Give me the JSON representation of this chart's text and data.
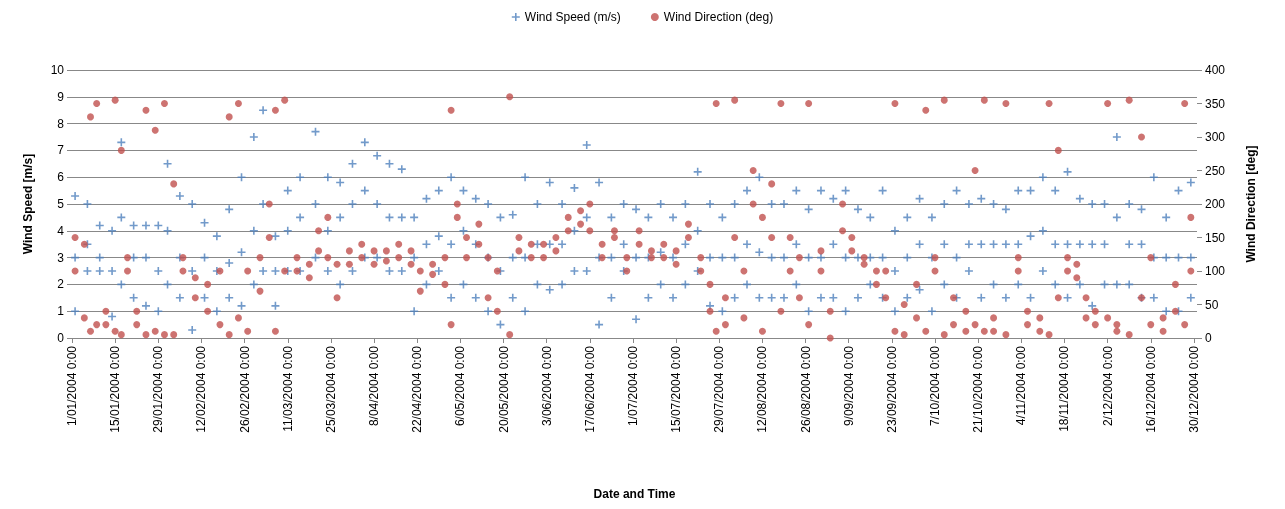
{
  "chart_data": {
    "type": "scatter",
    "xlabel": "Date and Time",
    "ylabel": "Wind Speed [m/s]",
    "y2label": "Wind Direction [deg]",
    "xlim": [
      "2004-01-01",
      "2004-12-31"
    ],
    "xticks": [
      {
        "value": "2004-01-01",
        "label": "1/01/2004 0:00"
      },
      {
        "value": "2004-01-15",
        "label": "15/01/2004 0:00"
      },
      {
        "value": "2004-01-29",
        "label": "29/01/2004 0:00"
      },
      {
        "value": "2004-02-12",
        "label": "12/02/2004 0:00"
      },
      {
        "value": "2004-02-26",
        "label": "26/02/2004 0:00"
      },
      {
        "value": "2004-03-11",
        "label": "11/03/2004 0:00"
      },
      {
        "value": "2004-03-25",
        "label": "25/03/2004 0:00"
      },
      {
        "value": "2004-04-08",
        "label": "8/04/2004 0:00"
      },
      {
        "value": "2004-04-22",
        "label": "22/04/2004 0:00"
      },
      {
        "value": "2004-05-06",
        "label": "6/05/2004 0:00"
      },
      {
        "value": "2004-05-20",
        "label": "20/05/2004 0:00"
      },
      {
        "value": "2004-06-03",
        "label": "3/06/2004 0:00"
      },
      {
        "value": "2004-06-17",
        "label": "17/06/2004 0:00"
      },
      {
        "value": "2004-07-01",
        "label": "1/07/2004 0:00"
      },
      {
        "value": "2004-07-15",
        "label": "15/07/2004 0:00"
      },
      {
        "value": "2004-07-29",
        "label": "29/07/2004 0:00"
      },
      {
        "value": "2004-08-12",
        "label": "12/08/2004 0:00"
      },
      {
        "value": "2004-08-26",
        "label": "26/08/2004 0:00"
      },
      {
        "value": "2004-09-09",
        "label": "9/09/2004 0:00"
      },
      {
        "value": "2004-09-23",
        "label": "23/09/2004 0:00"
      },
      {
        "value": "2004-10-07",
        "label": "7/10/2004 0:00"
      },
      {
        "value": "2004-10-21",
        "label": "21/10/2004 0:00"
      },
      {
        "value": "2004-11-04",
        "label": "4/11/2004 0:00"
      },
      {
        "value": "2004-11-18",
        "label": "18/11/2004 0:00"
      },
      {
        "value": "2004-12-02",
        "label": "2/12/2004 0:00"
      },
      {
        "value": "2004-12-16",
        "label": "16/12/2004 0:00"
      },
      {
        "value": "2004-12-30",
        "label": "30/12/2004 0:00"
      }
    ],
    "ylim": [
      0,
      10
    ],
    "yticks": [
      0,
      1,
      2,
      3,
      4,
      5,
      6,
      7,
      8,
      9,
      10
    ],
    "y2lim": [
      0,
      400
    ],
    "y2ticks": [
      0,
      50,
      100,
      150,
      200,
      250,
      300,
      350,
      400
    ],
    "grid": "y",
    "legend": "top",
    "series": [
      {
        "name": "Wind Speed (m/s)",
        "color": "#4f81bd",
        "marker": "cross",
        "x": [
          "2004-01-02",
          "2004-01-02",
          "2004-01-02",
          "2004-01-06",
          "2004-01-06",
          "2004-01-06",
          "2004-01-10",
          "2004-01-10",
          "2004-01-10",
          "2004-01-14",
          "2004-01-14",
          "2004-01-14",
          "2004-01-17",
          "2004-01-17",
          "2004-01-17",
          "2004-01-21",
          "2004-01-21",
          "2004-01-21",
          "2004-01-25",
          "2004-01-25",
          "2004-01-25",
          "2004-01-29",
          "2004-01-29",
          "2004-01-29",
          "2004-02-01",
          "2004-02-01",
          "2004-02-01",
          "2004-02-05",
          "2004-02-05",
          "2004-02-05",
          "2004-02-09",
          "2004-02-09",
          "2004-02-09",
          "2004-02-13",
          "2004-02-13",
          "2004-02-13",
          "2004-02-17",
          "2004-02-17",
          "2004-02-17",
          "2004-02-21",
          "2004-02-21",
          "2004-02-21",
          "2004-02-25",
          "2004-02-25",
          "2004-02-25",
          "2004-02-29",
          "2004-02-29",
          "2004-02-29",
          "2004-03-03",
          "2004-03-03",
          "2004-03-03",
          "2004-03-07",
          "2004-03-07",
          "2004-03-07",
          "2004-03-11",
          "2004-03-11",
          "2004-03-11",
          "2004-03-15",
          "2004-03-15",
          "2004-03-15",
          "2004-03-20",
          "2004-03-20",
          "2004-03-20",
          "2004-03-24",
          "2004-03-24",
          "2004-03-24",
          "2004-03-28",
          "2004-03-28",
          "2004-03-28",
          "2004-04-01",
          "2004-04-01",
          "2004-04-01",
          "2004-04-05",
          "2004-04-05",
          "2004-04-05",
          "2004-04-09",
          "2004-04-09",
          "2004-04-09",
          "2004-04-13",
          "2004-04-13",
          "2004-04-13",
          "2004-04-17",
          "2004-04-17",
          "2004-04-17",
          "2004-04-21",
          "2004-04-21",
          "2004-04-21",
          "2004-04-25",
          "2004-04-25",
          "2004-04-25",
          "2004-04-29",
          "2004-04-29",
          "2004-04-29",
          "2004-05-03",
          "2004-05-03",
          "2004-05-03",
          "2004-05-07",
          "2004-05-07",
          "2004-05-07",
          "2004-05-11",
          "2004-05-11",
          "2004-05-11",
          "2004-05-15",
          "2004-05-15",
          "2004-05-15",
          "2004-05-19",
          "2004-05-19",
          "2004-05-19",
          "2004-05-23",
          "2004-05-23",
          "2004-05-23",
          "2004-05-27",
          "2004-05-27",
          "2004-05-27",
          "2004-05-31",
          "2004-05-31",
          "2004-05-31",
          "2004-06-04",
          "2004-06-04",
          "2004-06-04",
          "2004-06-08",
          "2004-06-08",
          "2004-06-08",
          "2004-06-12",
          "2004-06-12",
          "2004-06-12",
          "2004-06-16",
          "2004-06-16",
          "2004-06-16",
          "2004-06-20",
          "2004-06-20",
          "2004-06-20",
          "2004-06-24",
          "2004-06-24",
          "2004-06-24",
          "2004-06-28",
          "2004-06-28",
          "2004-06-28",
          "2004-07-02",
          "2004-07-02",
          "2004-07-02",
          "2004-07-06",
          "2004-07-06",
          "2004-07-06",
          "2004-07-10",
          "2004-07-10",
          "2004-07-10",
          "2004-07-14",
          "2004-07-14",
          "2004-07-14",
          "2004-07-18",
          "2004-07-18",
          "2004-07-18",
          "2004-07-22",
          "2004-07-22",
          "2004-07-22",
          "2004-07-26",
          "2004-07-26",
          "2004-07-26",
          "2004-07-30",
          "2004-07-30",
          "2004-07-30",
          "2004-08-03",
          "2004-08-03",
          "2004-08-03",
          "2004-08-07",
          "2004-08-07",
          "2004-08-07",
          "2004-08-11",
          "2004-08-11",
          "2004-08-11",
          "2004-08-15",
          "2004-08-15",
          "2004-08-15",
          "2004-08-19",
          "2004-08-19",
          "2004-08-19",
          "2004-08-23",
          "2004-08-23",
          "2004-08-23",
          "2004-08-27",
          "2004-08-27",
          "2004-08-27",
          "2004-08-31",
          "2004-08-31",
          "2004-08-31",
          "2004-09-04",
          "2004-09-04",
          "2004-09-04",
          "2004-09-08",
          "2004-09-08",
          "2004-09-08",
          "2004-09-12",
          "2004-09-12",
          "2004-09-12",
          "2004-09-16",
          "2004-09-16",
          "2004-09-16",
          "2004-09-20",
          "2004-09-20",
          "2004-09-20",
          "2004-09-24",
          "2004-09-24",
          "2004-09-24",
          "2004-09-28",
          "2004-09-28",
          "2004-09-28",
          "2004-10-02",
          "2004-10-02",
          "2004-10-02",
          "2004-10-06",
          "2004-10-06",
          "2004-10-06",
          "2004-10-10",
          "2004-10-10",
          "2004-10-10",
          "2004-10-14",
          "2004-10-14",
          "2004-10-14",
          "2004-10-18",
          "2004-10-18",
          "2004-10-18",
          "2004-10-22",
          "2004-10-22",
          "2004-10-22",
          "2004-10-26",
          "2004-10-26",
          "2004-10-26",
          "2004-10-30",
          "2004-10-30",
          "2004-10-30",
          "2004-11-03",
          "2004-11-03",
          "2004-11-03",
          "2004-11-07",
          "2004-11-07",
          "2004-11-07",
          "2004-11-11",
          "2004-11-11",
          "2004-11-11",
          "2004-11-15",
          "2004-11-15",
          "2004-11-15",
          "2004-11-19",
          "2004-11-19",
          "2004-11-19",
          "2004-11-23",
          "2004-11-23",
          "2004-11-23",
          "2004-11-27",
          "2004-11-27",
          "2004-11-27",
          "2004-12-01",
          "2004-12-01",
          "2004-12-01",
          "2004-12-05",
          "2004-12-05",
          "2004-12-05",
          "2004-12-09",
          "2004-12-09",
          "2004-12-09",
          "2004-12-13",
          "2004-12-13",
          "2004-12-13",
          "2004-12-17",
          "2004-12-17",
          "2004-12-17",
          "2004-12-21",
          "2004-12-21",
          "2004-12-21",
          "2004-12-25",
          "2004-12-25",
          "2004-12-25",
          "2004-12-29",
          "2004-12-29",
          "2004-12-29"
        ],
        "values": [
          1.0,
          3,
          5.3,
          2.5,
          3.5,
          5,
          2.5,
          3,
          4.2,
          0.8,
          2.5,
          4,
          2,
          4.5,
          7.3,
          1.5,
          3,
          4.2,
          1.2,
          3,
          4.2,
          1,
          2.5,
          4.2,
          2,
          4,
          6.5,
          1.5,
          3,
          5.3,
          0.3,
          2.5,
          5,
          1.5,
          3,
          4.3,
          1,
          2.5,
          3.8,
          1.5,
          2.8,
          4.8,
          1.2,
          3.2,
          6,
          2,
          4,
          7.5,
          2.5,
          5,
          8.5,
          1.2,
          2.5,
          3.8,
          2.5,
          4,
          5.5,
          2.5,
          4.5,
          6,
          3,
          5,
          7.7,
          2.5,
          4,
          6,
          2,
          4.5,
          5.8,
          2.5,
          5,
          6.5,
          3,
          5.5,
          7.3,
          3,
          5,
          6.8,
          2.5,
          4.5,
          6.5,
          2.5,
          4.5,
          6.3,
          1,
          3,
          4.5,
          2,
          3.5,
          5.2,
          2.5,
          3.8,
          5.5,
          1.5,
          3.5,
          6,
          2,
          4,
          5.5,
          1.5,
          3.5,
          5.2,
          1,
          3,
          5,
          0.5,
          2.5,
          4.5,
          1.5,
          3,
          4.6,
          1,
          3,
          6,
          2,
          3.5,
          5,
          1.8,
          3.5,
          5.8,
          2,
          3.5,
          5,
          2.5,
          4,
          5.6,
          2.5,
          4.5,
          7.2,
          0.5,
          3,
          5.8,
          1.5,
          3,
          4.5,
          2.5,
          3.5,
          5,
          0.7,
          3,
          4.8,
          1.5,
          3,
          4.5,
          2,
          3.2,
          5,
          1.5,
          3,
          4.5,
          2,
          3.5,
          5,
          2.5,
          4,
          6.2,
          1.2,
          3,
          5,
          1,
          3,
          4.5,
          1.5,
          3,
          5,
          2,
          3.5,
          5.5,
          1.5,
          3.2,
          6,
          1.5,
          3,
          5,
          1.5,
          3,
          5,
          2,
          3.5,
          5.5,
          1,
          3,
          4.8,
          1.5,
          3,
          5.5,
          1.5,
          3.5,
          5.2,
          1,
          3,
          5.5,
          1.5,
          3,
          4.8,
          2,
          3,
          4.5,
          1.5,
          3,
          5.5,
          1,
          2.5,
          4,
          1.5,
          3,
          4.5,
          1.8,
          3.5,
          5.2,
          1,
          3,
          4.5,
          2,
          3.5,
          5,
          1.5,
          3,
          5.5,
          2.5,
          3.5,
          5,
          1.5,
          3.5,
          5.2,
          2,
          3.5,
          5,
          1.5,
          3.5,
          4.8,
          2,
          3.5,
          5.5,
          1.5,
          3.8,
          5.5,
          2.5,
          4,
          6,
          2,
          3.5,
          5.5,
          1.5,
          3.5,
          6.2,
          2,
          3.5,
          5.2,
          1.2,
          3.5,
          5,
          2,
          3.5,
          5,
          2,
          4.5,
          7.5,
          2,
          3.5,
          5,
          1.5,
          3.5,
          4.8,
          1.5,
          3,
          6,
          1,
          3,
          4.5,
          1,
          3,
          5.5,
          1.5,
          3,
          5.8
        ]
      },
      {
        "name": "Wind Direction (deg)",
        "color": "#c0504d",
        "marker": "circle",
        "axis": "y2",
        "x": [
          "2004-01-02",
          "2004-01-02",
          "2004-01-05",
          "2004-01-05",
          "2004-01-07",
          "2004-01-07",
          "2004-01-09",
          "2004-01-09",
          "2004-01-12",
          "2004-01-12",
          "2004-01-15",
          "2004-01-15",
          "2004-01-17",
          "2004-01-17",
          "2004-01-19",
          "2004-01-19",
          "2004-01-22",
          "2004-01-22",
          "2004-01-25",
          "2004-01-25",
          "2004-01-28",
          "2004-01-28",
          "2004-01-31",
          "2004-01-31",
          "2004-02-03",
          "2004-02-03",
          "2004-02-06",
          "2004-02-06",
          "2004-02-10",
          "2004-02-10",
          "2004-02-14",
          "2004-02-14",
          "2004-02-18",
          "2004-02-18",
          "2004-02-21",
          "2004-02-21",
          "2004-02-24",
          "2004-02-24",
          "2004-02-27",
          "2004-02-27",
          "2004-03-02",
          "2004-03-02",
          "2004-03-05",
          "2004-03-05",
          "2004-03-07",
          "2004-03-07",
          "2004-03-10",
          "2004-03-10",
          "2004-03-14",
          "2004-03-14",
          "2004-03-18",
          "2004-03-18",
          "2004-03-21",
          "2004-03-21",
          "2004-03-24",
          "2004-03-24",
          "2004-03-27",
          "2004-03-27",
          "2004-03-31",
          "2004-03-31",
          "2004-04-04",
          "2004-04-04",
          "2004-04-08",
          "2004-04-08",
          "2004-04-12",
          "2004-04-12",
          "2004-04-16",
          "2004-04-16",
          "2004-04-20",
          "2004-04-20",
          "2004-04-23",
          "2004-04-23",
          "2004-04-27",
          "2004-04-27",
          "2004-05-01",
          "2004-05-01",
          "2004-05-03",
          "2004-05-03",
          "2004-05-05",
          "2004-05-05",
          "2004-05-08",
          "2004-05-08",
          "2004-05-12",
          "2004-05-12",
          "2004-05-15",
          "2004-05-15",
          "2004-05-18",
          "2004-05-18",
          "2004-05-22",
          "2004-05-22",
          "2004-05-25",
          "2004-05-25",
          "2004-05-29",
          "2004-05-29",
          "2004-06-02",
          "2004-06-02",
          "2004-06-06",
          "2004-06-06",
          "2004-06-10",
          "2004-06-10",
          "2004-06-14",
          "2004-06-14",
          "2004-06-17",
          "2004-06-17",
          "2004-06-21",
          "2004-06-21",
          "2004-06-25",
          "2004-06-25",
          "2004-06-29",
          "2004-06-29",
          "2004-07-03",
          "2004-07-03",
          "2004-07-07",
          "2004-07-07",
          "2004-07-11",
          "2004-07-11",
          "2004-07-15",
          "2004-07-15",
          "2004-07-19",
          "2004-07-19",
          "2004-07-23",
          "2004-07-23",
          "2004-07-26",
          "2004-07-26",
          "2004-07-28",
          "2004-07-28",
          "2004-07-31",
          "2004-07-31",
          "2004-08-03",
          "2004-08-03",
          "2004-08-06",
          "2004-08-06",
          "2004-08-09",
          "2004-08-09",
          "2004-08-12",
          "2004-08-12",
          "2004-08-15",
          "2004-08-15",
          "2004-08-18",
          "2004-08-18",
          "2004-08-21",
          "2004-08-21",
          "2004-08-24",
          "2004-08-24",
          "2004-08-27",
          "2004-08-27",
          "2004-08-31",
          "2004-08-31",
          "2004-09-03",
          "2004-09-03",
          "2004-09-07",
          "2004-09-07",
          "2004-09-10",
          "2004-09-10",
          "2004-09-14",
          "2004-09-14",
          "2004-09-18",
          "2004-09-18",
          "2004-09-21",
          "2004-09-21",
          "2004-09-24",
          "2004-09-24",
          "2004-09-27",
          "2004-09-27",
          "2004-10-01",
          "2004-10-01",
          "2004-10-04",
          "2004-10-04",
          "2004-10-07",
          "2004-10-07",
          "2004-10-10",
          "2004-10-10",
          "2004-10-13",
          "2004-10-13",
          "2004-10-17",
          "2004-10-17",
          "2004-10-20",
          "2004-10-20",
          "2004-10-23",
          "2004-10-23",
          "2004-10-26",
          "2004-10-26",
          "2004-10-30",
          "2004-10-30",
          "2004-11-03",
          "2004-11-03",
          "2004-11-06",
          "2004-11-06",
          "2004-11-10",
          "2004-11-10",
          "2004-11-13",
          "2004-11-13",
          "2004-11-16",
          "2004-11-16",
          "2004-11-19",
          "2004-11-19",
          "2004-11-22",
          "2004-11-22",
          "2004-11-25",
          "2004-11-25",
          "2004-11-28",
          "2004-11-28",
          "2004-12-02",
          "2004-12-02",
          "2004-12-05",
          "2004-12-05",
          "2004-12-09",
          "2004-12-09",
          "2004-12-13",
          "2004-12-13",
          "2004-12-16",
          "2004-12-16",
          "2004-12-20",
          "2004-12-20",
          "2004-12-24",
          "2004-12-24",
          "2004-12-27",
          "2004-12-27",
          "2004-12-29",
          "2004-12-29"
        ],
        "values": [
          100,
          150,
          30,
          140,
          10,
          330,
          20,
          350,
          40,
          20,
          10,
          355,
          5,
          280,
          120,
          100,
          40,
          20,
          5,
          340,
          10,
          310,
          5,
          350,
          5,
          230,
          120,
          100,
          90,
          60,
          80,
          40,
          100,
          20,
          5,
          330,
          30,
          350,
          10,
          100,
          70,
          120,
          150,
          200,
          10,
          340,
          100,
          355,
          100,
          120,
          110,
          90,
          130,
          160,
          120,
          180,
          60,
          110,
          110,
          130,
          120,
          140,
          130,
          110,
          130,
          115,
          120,
          140,
          110,
          130,
          70,
          100,
          110,
          95,
          80,
          120,
          20,
          340,
          200,
          180,
          120,
          150,
          140,
          170,
          60,
          120,
          40,
          100,
          5,
          360,
          150,
          130,
          120,
          140,
          140,
          120,
          130,
          150,
          160,
          180,
          170,
          190,
          200,
          160,
          140,
          120,
          150,
          160,
          120,
          100,
          140,
          160,
          130,
          120,
          120,
          140,
          110,
          130,
          150,
          170,
          120,
          100,
          80,
          40,
          10,
          350,
          60,
          20,
          150,
          355,
          30,
          100,
          200,
          250,
          180,
          10,
          150,
          230,
          40,
          350,
          100,
          150,
          120,
          60,
          20,
          350,
          100,
          130,
          40,
          0,
          160,
          200,
          150,
          130,
          110,
          120,
          100,
          80,
          100,
          60,
          10,
          350,
          50,
          5,
          80,
          30,
          10,
          340,
          120,
          100,
          5,
          355,
          60,
          20,
          40,
          10,
          20,
          250,
          10,
          355,
          30,
          10,
          5,
          350,
          100,
          120,
          20,
          40,
          10,
          30,
          5,
          350,
          60,
          280,
          100,
          120,
          110,
          90,
          60,
          30,
          20,
          40,
          30,
          350,
          10,
          20,
          5,
          355,
          60,
          300,
          120,
          20,
          30,
          10,
          40,
          80,
          20,
          350,
          100,
          180
        ]
      }
    ]
  }
}
